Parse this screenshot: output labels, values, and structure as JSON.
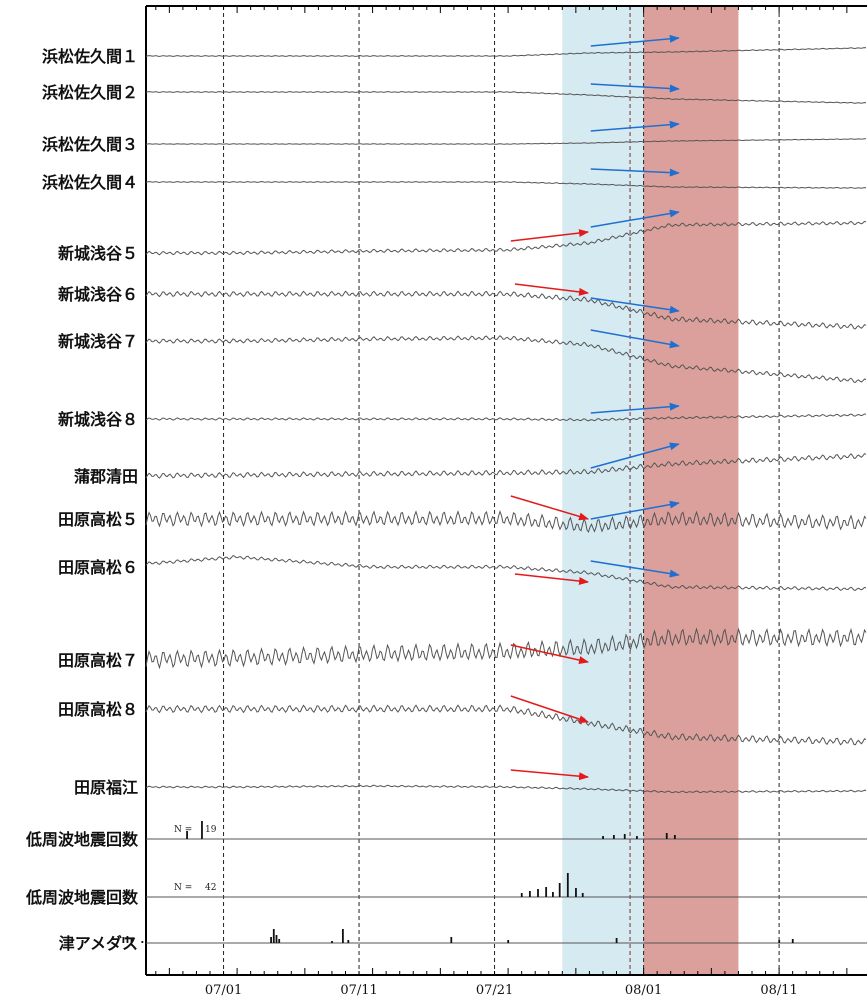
{
  "chart_data": {
    "type": "line",
    "x_range": [
      "06/23",
      "08/18"
    ],
    "x_ticks": [
      "07/01",
      "07/11",
      "07/21",
      "08/01",
      "08/11"
    ],
    "shaded_periods": [
      {
        "start": "07/26",
        "end": "08/01",
        "color": "#d6eaf2"
      },
      {
        "start": "08/01",
        "end": "08/08",
        "color": "#dca09c"
      }
    ],
    "series": [
      {
        "name": "浜松佐久間１",
        "trend": [
          0,
          0,
          0,
          0,
          -3,
          -4,
          -8
        ],
        "wiggle": 0.3,
        "color": "#555"
      },
      {
        "name": "浜松佐久間２",
        "trend": [
          0,
          0,
          0,
          0,
          3,
          7,
          11
        ],
        "wiggle": 0.3,
        "color": "#555"
      },
      {
        "name": "浜松佐久間３",
        "trend": [
          0,
          0,
          0,
          0,
          -1,
          -3,
          -5
        ],
        "wiggle": 0.2,
        "color": "#555"
      },
      {
        "name": "浜松佐久間４",
        "trend": [
          0,
          0,
          0,
          0,
          2,
          5,
          6
        ],
        "wiggle": 0.3,
        "color": "#555"
      },
      {
        "name": "新城浅谷５",
        "trend": [
          0,
          0,
          -2,
          -3,
          -10,
          -28,
          -30
        ],
        "wiggle": 1.2,
        "color": "#555"
      },
      {
        "name": "新城浅谷６",
        "trend": [
          0,
          0,
          0,
          0,
          6,
          25,
          33
        ],
        "wiggle": 1.8,
        "color": "#555"
      },
      {
        "name": "新城浅谷７",
        "trend": [
          0,
          0,
          -2,
          -3,
          4,
          25,
          40
        ],
        "wiggle": 1.5,
        "color": "#555"
      },
      {
        "name": "新城浅谷８",
        "trend": [
          0,
          0,
          0,
          0,
          1,
          -1,
          -4
        ],
        "wiggle": 0.8,
        "color": "#555"
      },
      {
        "name": "蒲郡清田",
        "trend": [
          0,
          -1,
          -2,
          -3,
          -4,
          -12,
          -20
        ],
        "wiggle": 1.8,
        "color": "#555"
      },
      {
        "name": "田原高松５",
        "trend": [
          0,
          0,
          0,
          0,
          8,
          0,
          4
        ],
        "wiggle": 5.0,
        "color": "#555"
      },
      {
        "name": "田原高松６",
        "trend": [
          0,
          -10,
          0,
          0,
          6,
          20,
          22
        ],
        "wiggle": 1.2,
        "color": "#555"
      },
      {
        "name": "田原高松７",
        "trend": [
          0,
          -2,
          -6,
          -8,
          -12,
          -22,
          -22
        ],
        "wiggle": 6.0,
        "color": "#555"
      },
      {
        "name": "田原高松８",
        "trend": [
          0,
          0,
          0,
          0,
          14,
          28,
          33
        ],
        "wiggle": 2.5,
        "color": "#555"
      },
      {
        "name": "田原福江",
        "trend": [
          0,
          0,
          -1,
          0,
          2,
          5,
          4
        ],
        "wiggle": 0.6,
        "color": "#555"
      }
    ],
    "event_series": [
      {
        "name": "低周波地震回数",
        "n_label": "N =",
        "n_value": "19",
        "bars": [
          {
            "x": 6.3,
            "h": 8
          },
          {
            "x": 7.4,
            "h": 18
          },
          {
            "x": 37.0,
            "h": 3
          },
          {
            "x": 37.8,
            "h": 4
          },
          {
            "x": 38.6,
            "h": 5
          },
          {
            "x": 39.5,
            "h": 3
          },
          {
            "x": 41.7,
            "h": 6
          },
          {
            "x": 42.3,
            "h": 4
          }
        ]
      },
      {
        "name": "低周波地震回数",
        "n_label": "N =",
        "n_value": "42",
        "bars": [
          {
            "x": 31.0,
            "h": 4
          },
          {
            "x": 31.6,
            "h": 6
          },
          {
            "x": 32.2,
            "h": 8
          },
          {
            "x": 32.8,
            "h": 10
          },
          {
            "x": 33.3,
            "h": 5
          },
          {
            "x": 33.8,
            "h": 14
          },
          {
            "x": 34.4,
            "h": 24
          },
          {
            "x": 35.0,
            "h": 9
          },
          {
            "x": 35.5,
            "h": 4
          }
        ]
      },
      {
        "name": "津アメダス",
        "n_label": "",
        "n_value": "",
        "bars": [
          {
            "x": 1.6,
            "h": 6
          },
          {
            "x": 1.9,
            "h": 7
          },
          {
            "x": 2.2,
            "h": 5
          },
          {
            "x": 3.0,
            "h": 2
          },
          {
            "x": 12.5,
            "h": 6
          },
          {
            "x": 12.7,
            "h": 14
          },
          {
            "x": 12.9,
            "h": 8
          },
          {
            "x": 13.1,
            "h": 4
          },
          {
            "x": 17.0,
            "h": 2
          },
          {
            "x": 17.8,
            "h": 14
          },
          {
            "x": 18.2,
            "h": 3
          },
          {
            "x": 25.8,
            "h": 6
          },
          {
            "x": 30.0,
            "h": 3
          },
          {
            "x": 38.0,
            "h": 5
          },
          {
            "x": 50.0,
            "h": 3
          },
          {
            "x": 51.0,
            "h": 4
          }
        ]
      }
    ],
    "arrows": [
      {
        "color": "red",
        "series": "新城浅谷５",
        "from": [
          30.2,
          -12
        ],
        "to": [
          35.9,
          -21
        ]
      },
      {
        "color": "red",
        "series": "新城浅谷６",
        "from": [
          30.5,
          -10
        ],
        "to": [
          35.9,
          -1
        ]
      },
      {
        "color": "red",
        "series": "田原高松５",
        "from": [
          30.2,
          -23
        ],
        "to": [
          35.9,
          0
        ]
      },
      {
        "color": "red",
        "series": "田原高松６",
        "from": [
          30.5,
          7
        ],
        "to": [
          35.9,
          15
        ]
      },
      {
        "color": "red",
        "series": "田原高松７",
        "from": [
          30.2,
          -15
        ],
        "to": [
          35.9,
          2
        ]
      },
      {
        "color": "red",
        "series": "田原高松８",
        "from": [
          30.2,
          -13
        ],
        "to": [
          35.9,
          13
        ]
      },
      {
        "color": "red",
        "series": "田原福江",
        "from": [
          30.2,
          -17
        ],
        "to": [
          35.9,
          -10
        ]
      },
      {
        "color": "blue",
        "series": "浜松佐久間１",
        "from": [
          36.1,
          -10
        ],
        "to": [
          42.6,
          -18
        ]
      },
      {
        "color": "blue",
        "series": "浜松佐久間２",
        "from": [
          36.1,
          -8
        ],
        "to": [
          42.6,
          -3
        ]
      },
      {
        "color": "blue",
        "series": "浜松佐久間３",
        "from": [
          36.1,
          -13
        ],
        "to": [
          42.6,
          -20
        ]
      },
      {
        "color": "blue",
        "series": "浜松佐久間４",
        "from": [
          36.1,
          -13
        ],
        "to": [
          42.6,
          -9
        ]
      },
      {
        "color": "blue",
        "series": "新城浅谷５",
        "from": [
          36.1,
          -26
        ],
        "to": [
          42.6,
          -41
        ]
      },
      {
        "color": "blue",
        "series": "新城浅谷６",
        "from": [
          36.1,
          4
        ],
        "to": [
          42.6,
          17
        ]
      },
      {
        "color": "blue",
        "series": "新城浅谷７",
        "from": [
          36.1,
          -11
        ],
        "to": [
          42.6,
          5
        ]
      },
      {
        "color": "blue",
        "series": "新城浅谷８",
        "from": [
          36.1,
          -6
        ],
        "to": [
          42.6,
          -13
        ]
      },
      {
        "color": "blue",
        "series": "蒲郡清田",
        "from": [
          36.1,
          -8
        ],
        "to": [
          42.6,
          -32
        ]
      },
      {
        "color": "blue",
        "series": "田原高松５",
        "from": [
          36.1,
          0
        ],
        "to": [
          42.6,
          -16
        ]
      },
      {
        "color": "blue",
        "series": "田原高松６",
        "from": [
          36.1,
          -6
        ],
        "to": [
          42.6,
          8
        ]
      }
    ]
  }
}
